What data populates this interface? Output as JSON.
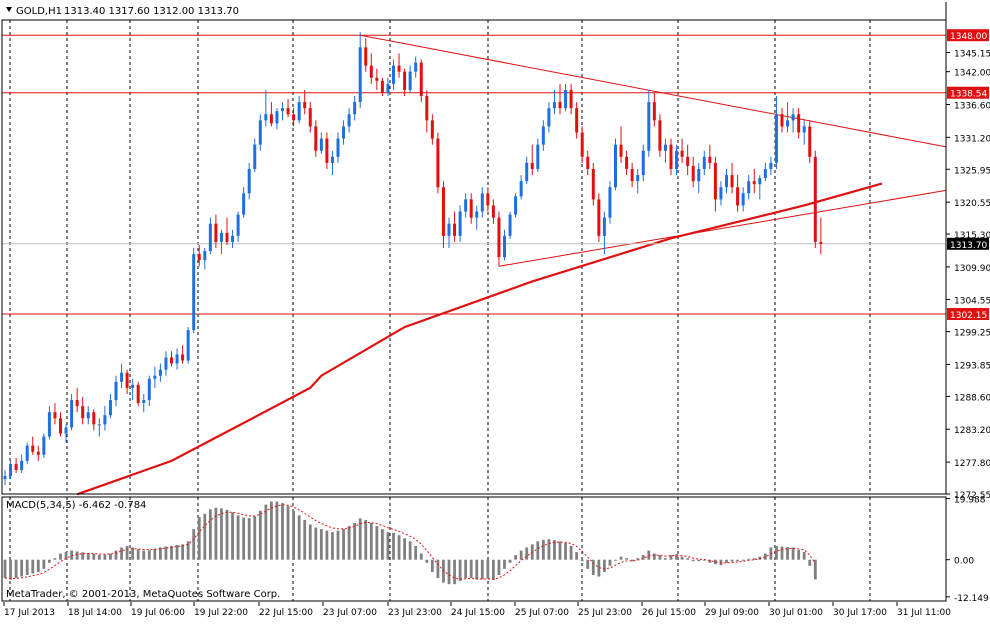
{
  "header": {
    "symbol_label": "GOLD,H1",
    "ohlc_values": "1313.40 1317.60 1312.00 1313.70"
  },
  "indicator": {
    "label": "MACD(5,34,5) -6.462 -0.784"
  },
  "copyright": "MetaTrader, © 2001-2013, MetaQuotes Software Corp.",
  "colors": {
    "bull": "#1e6fe0",
    "bear": "#e01010",
    "ma": "#e01010",
    "signal": "#e01010",
    "hist": "#808080",
    "level_line": "#e01010",
    "level_fill": "#e01010",
    "grid": "#000000",
    "axis_text": "#000000"
  },
  "chart_data": [
    {
      "type": "candlestick",
      "title": "GOLD,H1",
      "ylim": [
        1272.55,
        1350.5
      ],
      "y_ticks": [
        "1345.15",
        "1342.00",
        "1336.60",
        "1331.20",
        "1325.95",
        "1320.55",
        "1315.30",
        "1309.90",
        "1304.55",
        "1299.25",
        "1293.85",
        "1288.60",
        "1283.20",
        "1277.80",
        "1272.55"
      ],
      "x_labels": [
        "17 Jul 2013",
        "18 Jul 14:00",
        "19 Jul 06:00",
        "19 Jul 22:00",
        "22 Jul 15:00",
        "23 Jul 07:00",
        "23 Jul 23:00",
        "24 Jul 15:00",
        "25 Jul 07:00",
        "25 Jul 23:00",
        "26 Jul 15:00",
        "29 Jul 09:00",
        "30 Jul 01:00",
        "30 Jul 17:00",
        "31 Jul 11:00"
      ],
      "horizontal_levels": [
        {
          "label": "1348.00",
          "value": 1348.0
        },
        {
          "label": "1338.54",
          "value": 1338.54
        },
        {
          "label": "1302.15",
          "value": 1302.15
        }
      ],
      "current_price": {
        "label": "1313.70",
        "value": 1313.7
      },
      "trendlines": [
        {
          "from": [
            64,
            1348.0
          ],
          "to": [
            160,
            1331.3
          ]
        },
        {
          "from": [
            89,
            1310.0
          ],
          "to": [
            160,
            1321.0
          ]
        }
      ],
      "ma_line": [
        [
          13,
          1272.5
        ],
        [
          30,
          1278.0
        ],
        [
          55,
          1290.0
        ],
        [
          57,
          1292.0
        ],
        [
          72,
          1300.0
        ],
        [
          95,
          1307.5
        ],
        [
          120,
          1314.6
        ],
        [
          144,
          1320.0
        ],
        [
          158,
          1323.6
        ]
      ],
      "candles": [
        [
          1275,
          1276.5,
          1274,
          1275.5
        ],
        [
          1275.5,
          1278,
          1275,
          1277.5
        ],
        [
          1277.5,
          1278.5,
          1276,
          1276.5
        ],
        [
          1276.5,
          1279,
          1276,
          1278
        ],
        [
          1278,
          1281,
          1277.5,
          1280.5
        ],
        [
          1280.5,
          1282,
          1279,
          1279.5
        ],
        [
          1279.5,
          1280.5,
          1278,
          1279
        ],
        [
          1279,
          1282.5,
          1278.5,
          1282
        ],
        [
          1282,
          1287,
          1281.5,
          1286
        ],
        [
          1286,
          1287.5,
          1284,
          1285
        ],
        [
          1285,
          1286,
          1282,
          1282.5
        ],
        [
          1282.5,
          1284,
          1281,
          1283.5
        ],
        [
          1283.5,
          1289,
          1283,
          1288
        ],
        [
          1288,
          1290,
          1286,
          1287
        ],
        [
          1287,
          1288.5,
          1284,
          1285
        ],
        [
          1285,
          1287,
          1284,
          1286
        ],
        [
          1286,
          1286.5,
          1283,
          1284
        ],
        [
          1284,
          1285,
          1282,
          1284
        ],
        [
          1284,
          1287,
          1283,
          1285.5
        ],
        [
          1285.5,
          1289,
          1285,
          1288
        ],
        [
          1288,
          1292,
          1287,
          1291
        ],
        [
          1291,
          1294,
          1290,
          1292.5
        ],
        [
          1292.5,
          1293,
          1289,
          1290
        ],
        [
          1290,
          1291.5,
          1288,
          1290.5
        ],
        [
          1290.5,
          1291,
          1287,
          1287.5
        ],
        [
          1287.5,
          1289,
          1286,
          1288
        ],
        [
          1288,
          1292,
          1287,
          1291.5
        ],
        [
          1291.5,
          1293.5,
          1290,
          1292
        ],
        [
          1292,
          1294,
          1291,
          1293
        ],
        [
          1293,
          1296,
          1292,
          1295
        ],
        [
          1295,
          1296,
          1293.5,
          1294
        ],
        [
          1294,
          1296.5,
          1293,
          1295.5
        ],
        [
          1295.5,
          1297,
          1294,
          1294.5
        ],
        [
          1294.5,
          1300,
          1294,
          1299.5
        ],
        [
          1299.5,
          1313,
          1299,
          1312
        ],
        [
          1312,
          1313.5,
          1310,
          1311
        ],
        [
          1311,
          1313,
          1309.5,
          1312.5
        ],
        [
          1312.5,
          1318,
          1312,
          1317
        ],
        [
          1317,
          1318.5,
          1313,
          1314
        ],
        [
          1314,
          1316,
          1312,
          1315.5
        ],
        [
          1315.5,
          1318,
          1313.5,
          1314
        ],
        [
          1314,
          1316,
          1313,
          1315
        ],
        [
          1315,
          1319,
          1314,
          1318.5
        ],
        [
          1318.5,
          1323,
          1318,
          1322
        ],
        [
          1322,
          1327,
          1321,
          1326
        ],
        [
          1326,
          1331,
          1325.5,
          1330
        ],
        [
          1330,
          1335,
          1329,
          1334
        ],
        [
          1334,
          1339,
          1333,
          1335
        ],
        [
          1335,
          1337,
          1333,
          1333.5
        ],
        [
          1333.5,
          1336,
          1332.5,
          1335.5
        ],
        [
          1335.5,
          1337,
          1334,
          1336
        ],
        [
          1336,
          1337.5,
          1334.5,
          1335
        ],
        [
          1335,
          1336,
          1333,
          1334
        ],
        [
          1334,
          1338,
          1333.5,
          1337
        ],
        [
          1337,
          1339,
          1335,
          1336
        ],
        [
          1336,
          1337,
          1332,
          1333
        ],
        [
          1333,
          1334,
          1328,
          1329
        ],
        [
          1329,
          1332,
          1328.5,
          1331
        ],
        [
          1331,
          1332,
          1326,
          1327
        ],
        [
          1327,
          1329,
          1325,
          1328
        ],
        [
          1328,
          1332,
          1327,
          1331
        ],
        [
          1331,
          1334,
          1330,
          1333
        ],
        [
          1333,
          1336,
          1332,
          1335
        ],
        [
          1335,
          1338,
          1334,
          1337
        ],
        [
          1337,
          1348.5,
          1336,
          1346
        ],
        [
          1346,
          1347.5,
          1342,
          1343
        ],
        [
          1343,
          1345,
          1340,
          1341
        ],
        [
          1341,
          1342.5,
          1339,
          1340.5
        ],
        [
          1340.5,
          1341,
          1338,
          1338.5
        ],
        [
          1338.5,
          1341,
          1338,
          1340
        ],
        [
          1340,
          1344,
          1339,
          1343
        ],
        [
          1343,
          1345,
          1341,
          1342
        ],
        [
          1342,
          1342.5,
          1338,
          1339
        ],
        [
          1339,
          1343,
          1338.5,
          1342
        ],
        [
          1342,
          1344.5,
          1341,
          1343.5
        ],
        [
          1343.5,
          1344,
          1337,
          1338
        ],
        [
          1338,
          1339,
          1332,
          1334
        ],
        [
          1334,
          1335,
          1330,
          1331
        ],
        [
          1331,
          1332,
          1322,
          1323
        ],
        [
          1323,
          1324,
          1313,
          1315
        ],
        [
          1315,
          1318,
          1313,
          1317
        ],
        [
          1317,
          1319,
          1314,
          1315
        ],
        [
          1315,
          1320,
          1314,
          1319
        ],
        [
          1319,
          1322,
          1318,
          1321
        ],
        [
          1321,
          1322,
          1317,
          1318
        ],
        [
          1318,
          1320,
          1316,
          1319
        ],
        [
          1319,
          1323,
          1318,
          1322
        ],
        [
          1322,
          1323,
          1319,
          1320
        ],
        [
          1320,
          1321,
          1317,
          1318
        ],
        [
          1318,
          1319,
          1310,
          1311.5
        ],
        [
          1311.5,
          1316,
          1311,
          1315
        ],
        [
          1315,
          1319,
          1314.5,
          1318.5
        ],
        [
          1318.5,
          1322,
          1318,
          1321.5
        ],
        [
          1321.5,
          1325,
          1321,
          1324
        ],
        [
          1324,
          1328,
          1323.5,
          1327
        ],
        [
          1327,
          1330,
          1325,
          1326
        ],
        [
          1326,
          1331,
          1325.5,
          1330
        ],
        [
          1330,
          1334,
          1329,
          1333
        ],
        [
          1333,
          1337,
          1332,
          1336
        ],
        [
          1336,
          1339,
          1335,
          1337
        ],
        [
          1337,
          1340,
          1335,
          1336
        ],
        [
          1336,
          1340,
          1335.5,
          1339
        ],
        [
          1339,
          1340,
          1335,
          1336
        ],
        [
          1336,
          1337,
          1331,
          1332
        ],
        [
          1332,
          1333,
          1327,
          1328
        ],
        [
          1328,
          1329,
          1325,
          1326
        ],
        [
          1326,
          1327,
          1320,
          1321
        ],
        [
          1321,
          1322,
          1314,
          1315
        ],
        [
          1315,
          1319,
          1312,
          1318
        ],
        [
          1318,
          1324,
          1317,
          1323
        ],
        [
          1323,
          1331,
          1322.5,
          1330
        ],
        [
          1330,
          1333,
          1327,
          1328
        ],
        [
          1328,
          1329,
          1325,
          1326
        ],
        [
          1326,
          1327,
          1323,
          1324
        ],
        [
          1324,
          1326,
          1322,
          1325
        ],
        [
          1325,
          1330,
          1324,
          1329
        ],
        [
          1329,
          1339,
          1328,
          1337
        ],
        [
          1337,
          1338.5,
          1333,
          1334
        ],
        [
          1334,
          1335,
          1328,
          1329
        ],
        [
          1329,
          1331,
          1327,
          1330
        ],
        [
          1330,
          1331,
          1325,
          1326
        ],
        [
          1326,
          1330,
          1325,
          1329
        ],
        [
          1329,
          1331,
          1327,
          1328
        ],
        [
          1328,
          1330,
          1325,
          1326.5
        ],
        [
          1326.5,
          1328,
          1323,
          1324
        ],
        [
          1324,
          1327,
          1322,
          1326
        ],
        [
          1326,
          1329,
          1325,
          1328
        ],
        [
          1328,
          1330,
          1326,
          1327
        ],
        [
          1327,
          1328,
          1319,
          1321
        ],
        [
          1321,
          1324,
          1320,
          1323
        ],
        [
          1323,
          1326,
          1322,
          1325
        ],
        [
          1325,
          1327,
          1322,
          1323
        ],
        [
          1323,
          1325,
          1319,
          1320
        ],
        [
          1320,
          1323,
          1319,
          1322
        ],
        [
          1322,
          1325,
          1321,
          1324
        ],
        [
          1324,
          1326,
          1322,
          1323.5
        ],
        [
          1323.5,
          1325,
          1321,
          1324.5
        ],
        [
          1324.5,
          1327,
          1324,
          1326
        ],
        [
          1326,
          1328,
          1325,
          1327
        ],
        [
          1327,
          1338,
          1326,
          1335
        ],
        [
          1335,
          1336,
          1332,
          1333
        ],
        [
          1333,
          1337,
          1332,
          1334
        ],
        [
          1334,
          1336,
          1332,
          1335
        ],
        [
          1335,
          1336,
          1331,
          1332
        ],
        [
          1332,
          1334,
          1330,
          1333
        ],
        [
          1333,
          1334,
          1327,
          1328
        ],
        [
          1328,
          1329,
          1313,
          1314
        ],
        [
          1314,
          1318,
          1312,
          1313.7
        ]
      ]
    },
    {
      "type": "bar",
      "title": "MACD(5,34,5) -6.462 -0.784",
      "ylim": [
        -13.5,
        20.5
      ],
      "y_ticks": [
        "19.988",
        "0.00",
        "-12.149"
      ],
      "histogram": [
        -6,
        -6.5,
        -6,
        -5.5,
        -5,
        -4.5,
        -4,
        -3,
        -1,
        0.5,
        2,
        2.5,
        3,
        2.7,
        2.4,
        2.2,
        1.9,
        1.6,
        1.6,
        2,
        3,
        4,
        4.5,
        4,
        3.4,
        3,
        3.1,
        3.6,
        4,
        4.3,
        4.5,
        4.8,
        5,
        6,
        10,
        14,
        15,
        16.5,
        17,
        16.8,
        16.3,
        15.5,
        14.5,
        13.8,
        13.6,
        14.2,
        16,
        18,
        19,
        19,
        18.5,
        17.5,
        16,
        14.5,
        13,
        11.5,
        10.5,
        10,
        9.5,
        9,
        9.5,
        10,
        11,
        12,
        13.5,
        13,
        12,
        11,
        10,
        9,
        8.8,
        8,
        7,
        6,
        4.5,
        2,
        -1,
        -4,
        -6,
        -7.5,
        -8,
        -8,
        -7,
        -6,
        -6,
        -6.5,
        -6.4,
        -6.2,
        -6.6,
        -5,
        -3,
        -1,
        1.5,
        3,
        4,
        5,
        6,
        6.5,
        6.7,
        6.4,
        6,
        5.5,
        4.5,
        2.5,
        -0.5,
        -3,
        -5,
        -5.5,
        -4,
        -2,
        0,
        1,
        0.5,
        -0.5,
        0.5,
        1.5,
        3,
        2,
        1.5,
        0.5,
        1.5,
        1.8,
        1,
        0.5,
        -0.5,
        -0.5,
        -0.2,
        -1,
        -1.5,
        -1.8,
        -1,
        -0.6,
        -0.5,
        0,
        0.3,
        0.5,
        1,
        2,
        4,
        4.5,
        4.3,
        4.1,
        4,
        3.2,
        2.5,
        -2,
        -6.46
      ]
    }
  ]
}
